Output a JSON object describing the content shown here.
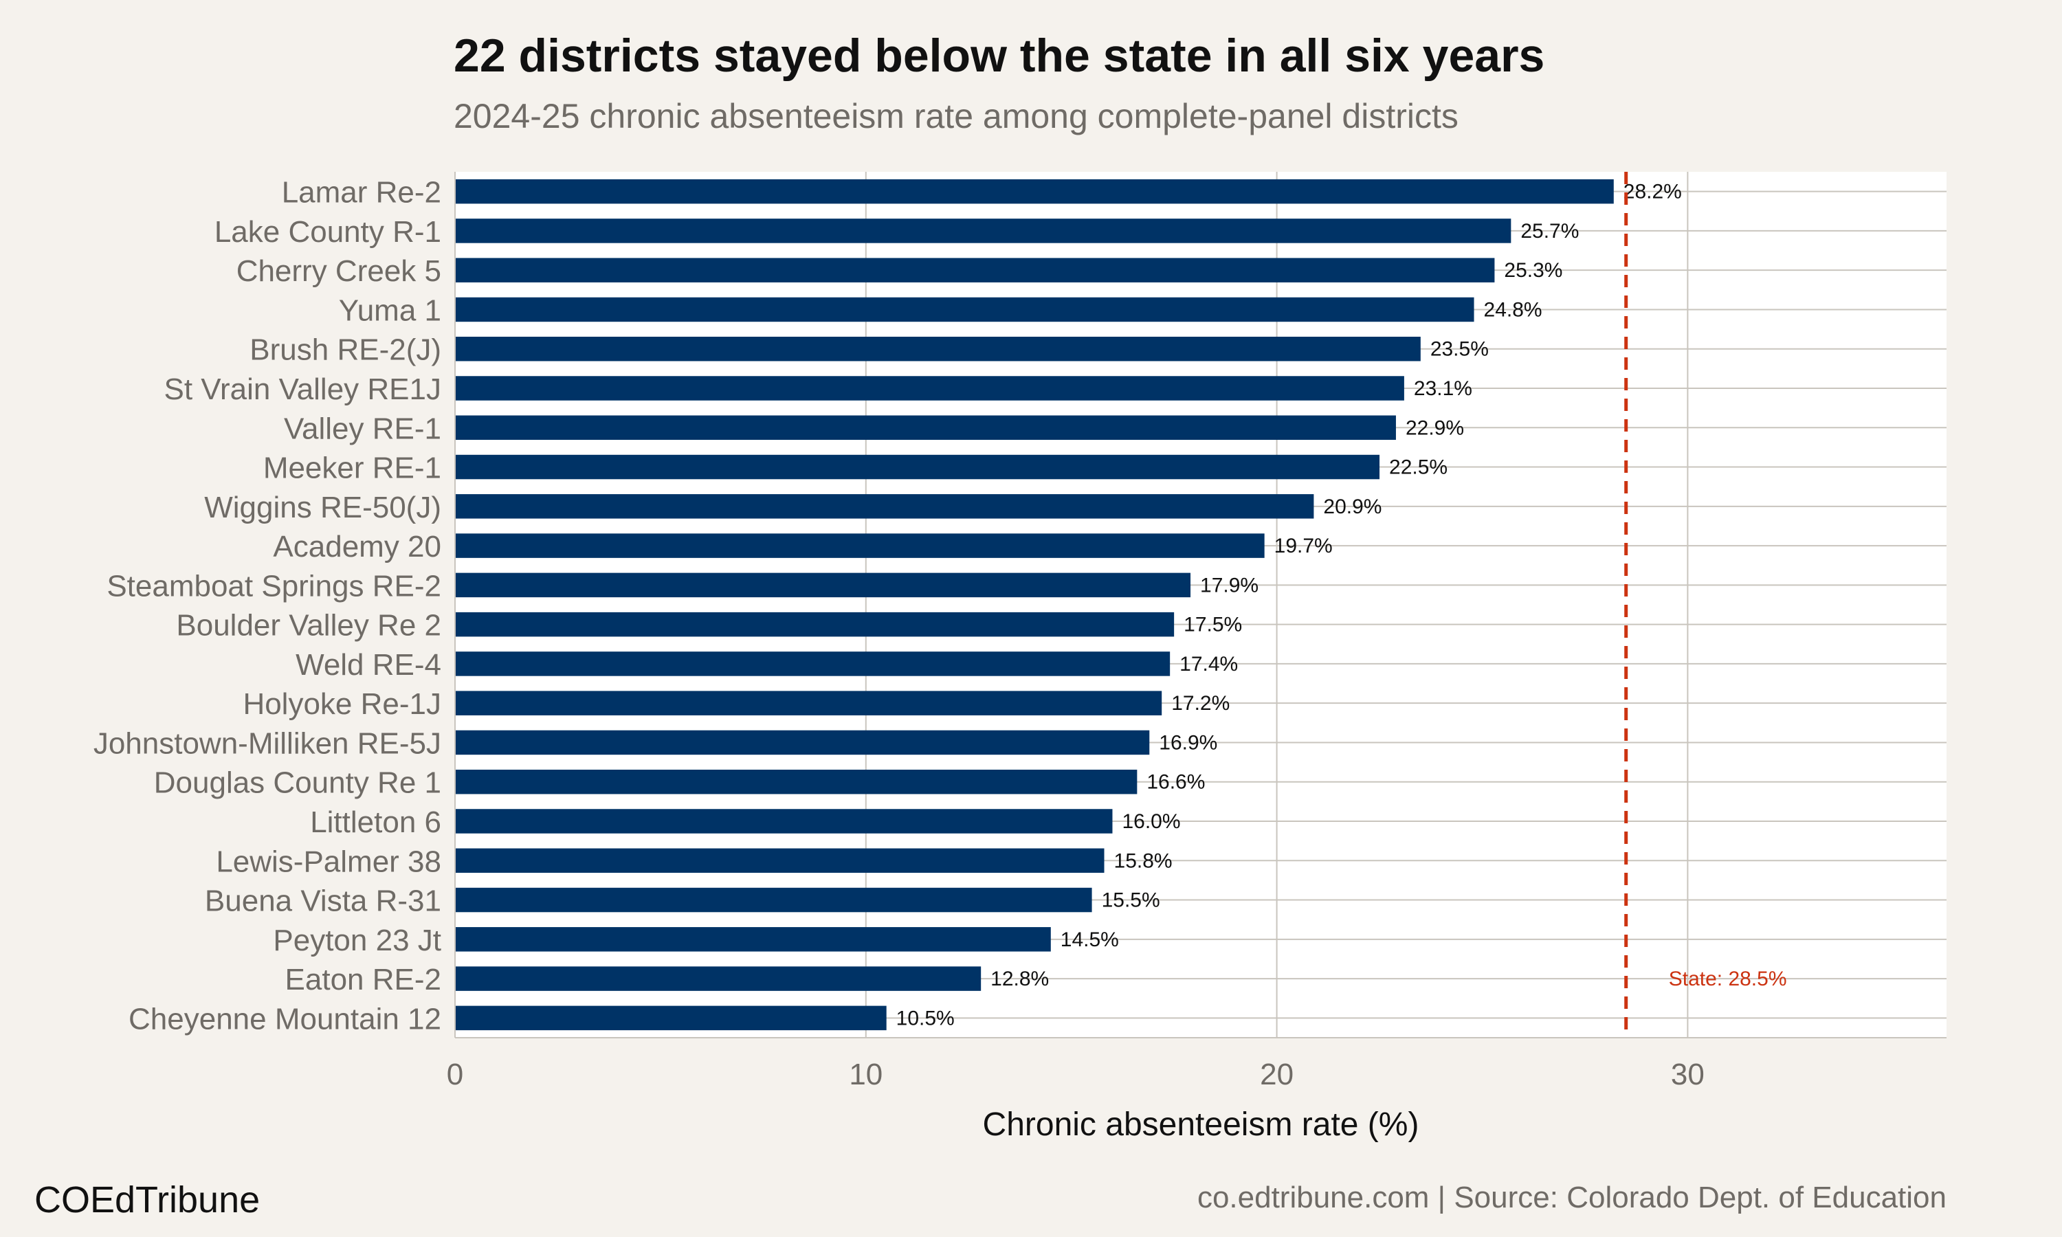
{
  "header": {
    "title": "22 districts stayed below the state in all six years",
    "subtitle": "2024-25 chronic absenteeism rate among complete-panel districts"
  },
  "footer": {
    "brand": "COEdTribune",
    "source": "co.edtribune.com | Source: Colorado Dept. of Education"
  },
  "colors": {
    "bar": "#003366",
    "reference_line": "#cc3311",
    "panel_background": "#ffffff",
    "page_background": "#f5f2ed",
    "grid": "#c9c5be"
  },
  "chart_data": {
    "type": "bar",
    "orientation": "horizontal",
    "xlabel": "Chronic absenteeism rate (%)",
    "xlim": [
      0,
      36.3
    ],
    "xticks": [
      0,
      10,
      20,
      30
    ],
    "grid": true,
    "categories": [
      "Lamar Re-2",
      "Lake County R-1",
      "Cherry Creek 5",
      "Yuma 1",
      "Brush RE-2(J)",
      "St Vrain Valley RE1J",
      "Valley RE-1",
      "Meeker RE-1",
      "Wiggins RE-50(J)",
      "Academy 20",
      "Steamboat Springs RE-2",
      "Boulder Valley Re 2",
      "Weld RE-4",
      "Holyoke Re-1J",
      "Johnstown-Milliken RE-5J",
      "Douglas County Re 1",
      "Littleton 6",
      "Lewis-Palmer 38",
      "Buena Vista R-31",
      "Peyton 23 Jt",
      "Eaton RE-2",
      "Cheyenne Mountain 12"
    ],
    "values": [
      28.2,
      25.7,
      25.3,
      24.8,
      23.5,
      23.1,
      22.9,
      22.5,
      20.9,
      19.7,
      17.9,
      17.5,
      17.4,
      17.2,
      16.9,
      16.6,
      16.0,
      15.8,
      15.5,
      14.5,
      12.8,
      10.5
    ],
    "value_labels": [
      "28.2%",
      "25.7%",
      "25.3%",
      "24.8%",
      "23.5%",
      "23.1%",
      "22.9%",
      "22.5%",
      "20.9%",
      "19.7%",
      "17.9%",
      "17.5%",
      "17.4%",
      "17.2%",
      "16.9%",
      "16.6%",
      "16.0%",
      "15.8%",
      "15.5%",
      "14.5%",
      "12.8%",
      "10.5%"
    ],
    "reference_line": {
      "value": 28.5,
      "label": "State: 28.5%",
      "style": "dashed"
    }
  }
}
